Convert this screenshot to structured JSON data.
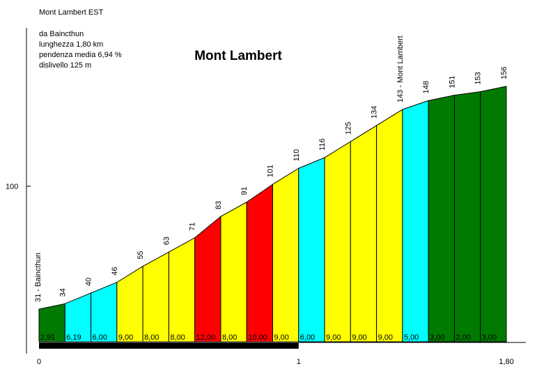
{
  "header": {
    "name": "Mont Lambert EST",
    "start": "da Baincthun",
    "length": "lunghezza 1,80 km",
    "gradient": "pendenza media 6,94 %",
    "climb": "dislivello 125 m"
  },
  "chart_data": {
    "type": "area",
    "title": "Mont Lambert",
    "xlabel": "",
    "ylabel": "",
    "x_ticks": [
      "0",
      "1",
      "1,80"
    ],
    "y_ticks": [
      {
        "value": 100,
        "label": "100"
      }
    ],
    "xlim": [
      0,
      1.8
    ],
    "distance_per_segment_km": 0.1,
    "altitudes": [
      31,
      34,
      40,
      46,
      55,
      63,
      71,
      83,
      91,
      101,
      110,
      116,
      125,
      134,
      143,
      148,
      151,
      153,
      156
    ],
    "altitude_labels": [
      "31 - Baincthun",
      "34",
      "40",
      "46",
      "55",
      "63",
      "71",
      "83",
      "91",
      "101",
      "110",
      "116",
      "125",
      "134",
      "143 - Mont Lambert",
      "148",
      "151",
      "153",
      "156"
    ],
    "gradients": [
      "2,91",
      "6,19",
      "6,00",
      "9,00",
      "8,00",
      "8,00",
      "12,00",
      "8,00",
      "10,00",
      "9,00",
      "6,00",
      "9,00",
      "9,00",
      "9,00",
      "5,00",
      "3,00",
      "2,00",
      "3,00"
    ],
    "segment_colors": [
      "#007a00",
      "#00ffff",
      "#00ffff",
      "#ffff00",
      "#ffff00",
      "#ffff00",
      "#ff0000",
      "#ffff00",
      "#ff0000",
      "#ffff00",
      "#00ffff",
      "#ffff00",
      "#ffff00",
      "#ffff00",
      "#00ffff",
      "#007a00",
      "#007a00",
      "#007a00"
    ],
    "grid": false,
    "legend": "none"
  }
}
